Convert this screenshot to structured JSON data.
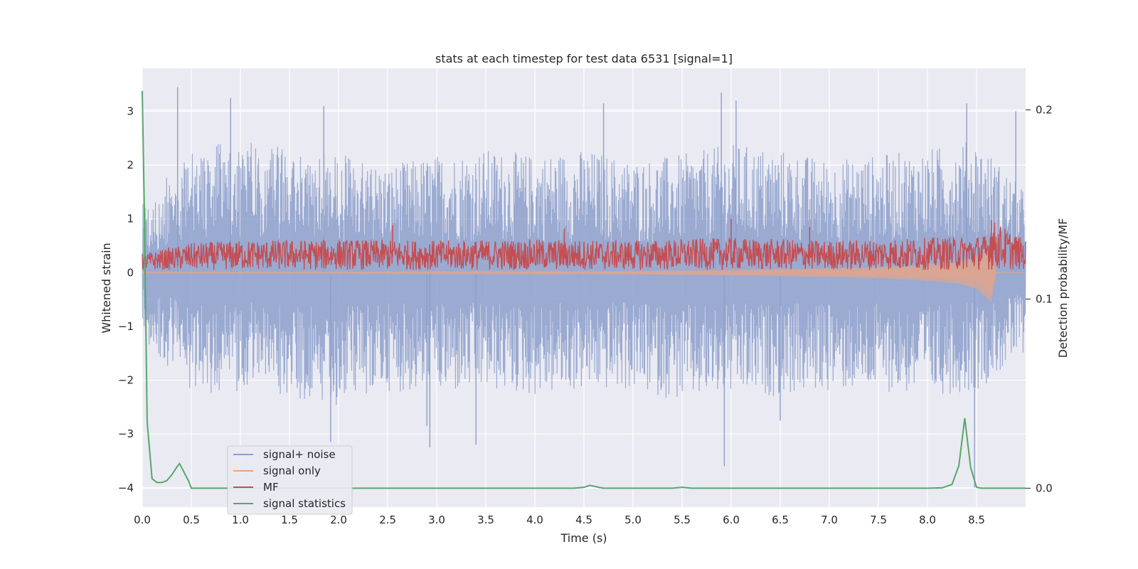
{
  "chart_data": {
    "type": "line",
    "title": "stats at each timestep for test data 6531 [signal=1]",
    "xlabel": "Time (s)",
    "ylabel": "Whitened strain",
    "ylabel_right": "Detection probability/MF",
    "xlim": [
      0.0,
      9.0
    ],
    "ylim": [
      -4.36,
      3.8
    ],
    "ylim_right": [
      -0.01,
      0.222
    ],
    "x_ticks": [
      "0.0",
      "0.5",
      "1.0",
      "1.5",
      "2.0",
      "2.5",
      "3.0",
      "3.5",
      "4.0",
      "4.5",
      "5.0",
      "5.5",
      "6.0",
      "6.5",
      "7.0",
      "7.5",
      "8.0",
      "8.5"
    ],
    "y_ticks": [
      "3",
      "2",
      "1",
      "0",
      "−1",
      "−2",
      "−3",
      "−4"
    ],
    "y_ticks_right": [
      "0.2",
      "0.1",
      "0.0"
    ],
    "grid": true,
    "legend_position": "lower-left",
    "colors": {
      "background": "#eaeaf2",
      "grid": "#ffffff",
      "signal_noise": "#8c9fcb",
      "signal_only": "#e1a58c",
      "mf": "#c44e52",
      "signal_statistics": "#55a868"
    },
    "series": [
      {
        "name": "signal+ noise",
        "description_axis": "left",
        "envelope_upper": [
          [
            0.0,
            1.3
          ],
          [
            0.5,
            2.3
          ],
          [
            1.0,
            2.5
          ],
          [
            1.5,
            2.3
          ],
          [
            2.0,
            2.2
          ],
          [
            2.5,
            2.0
          ],
          [
            3.0,
            2.2
          ],
          [
            3.5,
            2.3
          ],
          [
            4.0,
            2.2
          ],
          [
            4.5,
            2.3
          ],
          [
            5.0,
            2.1
          ],
          [
            5.5,
            2.2
          ],
          [
            6.0,
            2.4
          ],
          [
            6.5,
            2.3
          ],
          [
            7.0,
            2.1
          ],
          [
            7.5,
            2.2
          ],
          [
            8.0,
            2.3
          ],
          [
            8.5,
            2.5
          ],
          [
            9.0,
            1.5
          ]
        ],
        "envelope_lower": [
          [
            0.0,
            -1.2
          ],
          [
            0.5,
            -2.3
          ],
          [
            1.0,
            -2.2
          ],
          [
            1.5,
            -2.3
          ],
          [
            2.0,
            -2.5
          ],
          [
            2.5,
            -2.2
          ],
          [
            3.0,
            -2.3
          ],
          [
            3.5,
            -2.2
          ],
          [
            4.0,
            -2.3
          ],
          [
            4.5,
            -2.2
          ],
          [
            5.0,
            -2.2
          ],
          [
            5.5,
            -2.4
          ],
          [
            6.0,
            -2.3
          ],
          [
            6.5,
            -2.3
          ],
          [
            7.0,
            -2.2
          ],
          [
            7.5,
            -2.2
          ],
          [
            8.0,
            -2.3
          ],
          [
            8.5,
            -2.2
          ],
          [
            9.0,
            -1.5
          ]
        ],
        "peaks": [
          [
            0.36,
            3.45
          ],
          [
            0.9,
            3.25
          ],
          [
            1.85,
            3.1
          ],
          [
            4.7,
            3.15
          ],
          [
            5.9,
            3.35
          ],
          [
            6.05,
            3.2
          ],
          [
            8.4,
            3.15
          ],
          [
            8.9,
            3.0
          ],
          [
            1.92,
            -3.15
          ],
          [
            2.93,
            -3.25
          ],
          [
            3.4,
            -3.2
          ],
          [
            5.93,
            -3.6
          ],
          [
            8.48,
            -4.0
          ],
          [
            2.9,
            -2.85
          ],
          [
            6.5,
            -2.75
          ]
        ]
      },
      {
        "name": "signal only",
        "description_axis": "left",
        "amplitude_envelope": [
          [
            0.0,
            0.01
          ],
          [
            2.0,
            0.01
          ],
          [
            4.0,
            0.02
          ],
          [
            5.0,
            0.03
          ],
          [
            6.0,
            0.05
          ],
          [
            7.0,
            0.08
          ],
          [
            7.5,
            0.1
          ],
          [
            8.0,
            0.15
          ],
          [
            8.3,
            0.2
          ],
          [
            8.5,
            0.3
          ],
          [
            8.65,
            0.55
          ],
          [
            8.7,
            0.0
          ],
          [
            9.0,
            0.0
          ]
        ]
      },
      {
        "name": "MF",
        "description_axis": "left",
        "envelope_upper": [
          [
            0.0,
            0.35
          ],
          [
            0.5,
            0.55
          ],
          [
            1.0,
            0.6
          ],
          [
            2.0,
            0.62
          ],
          [
            3.0,
            0.6
          ],
          [
            4.0,
            0.62
          ],
          [
            5.0,
            0.6
          ],
          [
            6.0,
            0.65
          ],
          [
            7.0,
            0.6
          ],
          [
            8.0,
            0.65
          ],
          [
            8.6,
            0.7
          ],
          [
            8.65,
            1.0
          ],
          [
            9.0,
            0.6
          ]
        ],
        "envelope_lower": [
          [
            0.0,
            0.05
          ],
          [
            9.0,
            0.05
          ]
        ],
        "peaks": [
          [
            2.55,
            0.88
          ],
          [
            4.3,
            0.82
          ],
          [
            6.0,
            1.0
          ],
          [
            6.8,
            0.85
          ],
          [
            8.65,
            0.98
          ]
        ]
      },
      {
        "name": "signal statistics",
        "description_axis": "right",
        "x": [
          0.0,
          0.02,
          0.05,
          0.1,
          0.15,
          0.2,
          0.25,
          0.3,
          0.35,
          0.38,
          0.42,
          0.47,
          0.5,
          1.0,
          2.0,
          3.0,
          4.0,
          4.4,
          4.5,
          4.56,
          4.65,
          4.7,
          5.0,
          5.4,
          5.5,
          5.6,
          6.0,
          7.0,
          8.0,
          8.15,
          8.25,
          8.32,
          8.38,
          8.44,
          8.5,
          8.55,
          9.0
        ],
        "y": [
          0.21,
          0.15,
          0.035,
          0.005,
          0.003,
          0.003,
          0.004,
          0.007,
          0.011,
          0.013,
          0.009,
          0.004,
          0.0,
          0.0,
          0.0,
          0.0,
          0.0,
          0.0,
          0.0005,
          0.0015,
          0.0005,
          0.0,
          0.0,
          0.0,
          0.0005,
          0.0,
          0.0,
          0.0,
          0.0,
          0.0002,
          0.002,
          0.012,
          0.037,
          0.011,
          0.0005,
          0.0,
          0.0
        ]
      }
    ],
    "legend": [
      "signal+ noise",
      "signal only",
      "MF",
      "signal statistics"
    ]
  }
}
